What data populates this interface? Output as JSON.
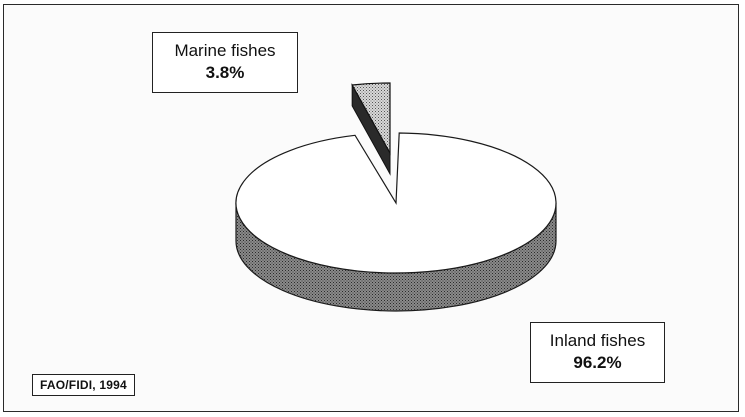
{
  "chart_data": {
    "type": "pie",
    "style": "3d-exploded",
    "slices": [
      {
        "label": "Inland fishes",
        "value": 96.2,
        "display": "96.2%",
        "fill": "#ffffff",
        "side_fill": "#7a7a7a",
        "exploded": false
      },
      {
        "label": "Marine fishes",
        "value": 3.8,
        "display": "3.8%",
        "fill": "#bdbdbd",
        "side_fill": "#5a5a5a",
        "exploded": true
      }
    ],
    "source": "FAO/FIDI, 1994"
  }
}
